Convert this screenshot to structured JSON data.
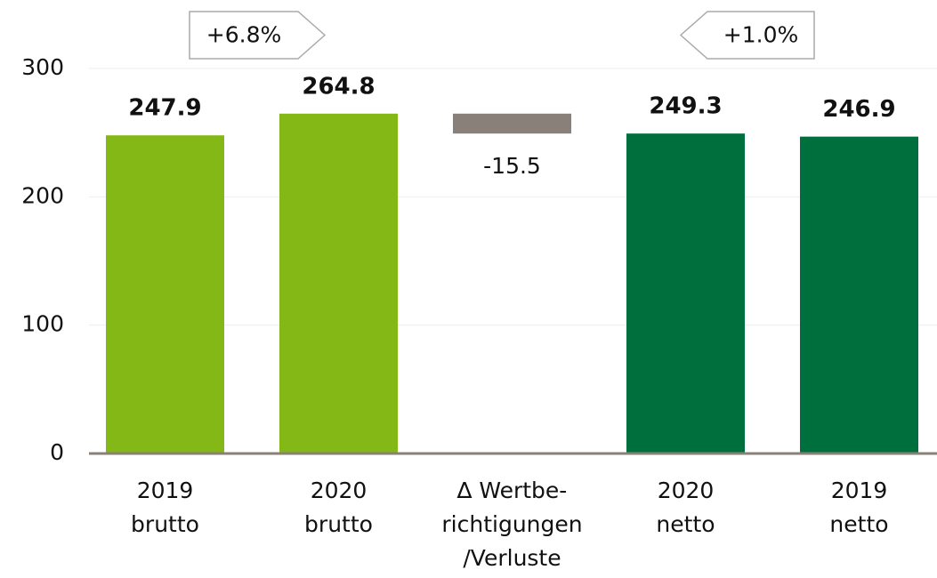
{
  "chart_data": {
    "type": "waterfall",
    "categories": [
      [
        "2019",
        "brutto"
      ],
      [
        "2020",
        "brutto"
      ],
      [
        "∆  Wertbe-",
        "richtigungen",
        "/Verluste"
      ],
      [
        "2020",
        "netto"
      ],
      [
        "2019",
        "netto"
      ]
    ],
    "values": [
      247.9,
      264.8,
      -15.5,
      249.3,
      246.9
    ],
    "colors": [
      "#84b816",
      "#84b816",
      "#8a807a",
      "#006f3e",
      "#006f3e"
    ],
    "annotations": [
      "+6.8%",
      "+1.0%"
    ],
    "ylim": [
      0,
      300
    ],
    "yticks": [
      0,
      100,
      200,
      300
    ],
    "grid": true
  }
}
